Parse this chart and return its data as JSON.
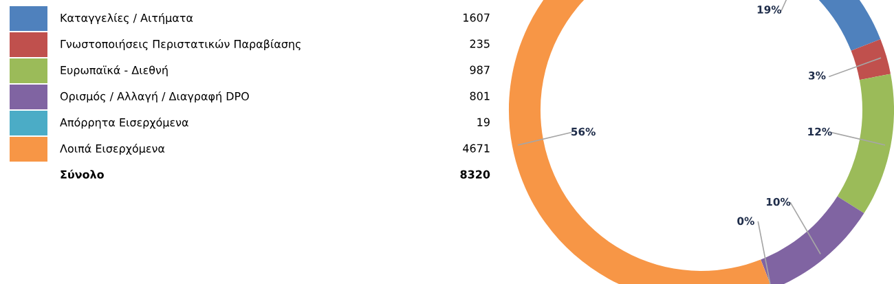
{
  "chart_data": {
    "type": "donut",
    "categories": [
      "Καταγγελίες / Αιτήματα",
      "Γνωστοποιήσεις Περιστατικών Παραβίασης",
      "Ευρωπαϊκά - Διεθνή",
      "Ορισμός / Αλλαγή / Διαγραφή DPO",
      "Απόρρητα Εισερχόμενα",
      "Λοιπά Εισερχόμενα"
    ],
    "values": [
      19,
      3,
      12,
      10,
      0,
      56
    ],
    "colors": [
      "#4f81bd",
      "#c0504d",
      "#9bbb59",
      "#8064a2",
      "#4bacc6",
      "#f79646"
    ],
    "value_labels": [
      "19%",
      "3%",
      "12%",
      "10%",
      "0%",
      "56%"
    ],
    "annotations": [
      "1607",
      "235",
      "987",
      "801",
      "19",
      "4671",
      "Σύνολο"
    ],
    "totals": [
      "8320"
    ],
    "legend": "left"
  }
}
